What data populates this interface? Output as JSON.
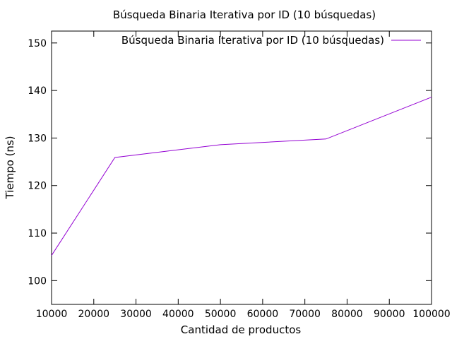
{
  "chart_data": {
    "type": "line",
    "title": "Búsqueda Binaria Iterativa por ID (10 búsquedas)",
    "xlabel": "Cantidad de productos",
    "ylabel": "Tiempo (ns)",
    "xlim": [
      10000,
      100000
    ],
    "ylim": [
      95,
      152.5
    ],
    "x_ticks": [
      "10000",
      "20000",
      "30000",
      "40000",
      "50000",
      "60000",
      "70000",
      "80000",
      "90000",
      "100000"
    ],
    "y_ticks": [
      "100",
      "110",
      "120",
      "130",
      "140",
      "150"
    ],
    "grid": false,
    "legend_position": "top-right",
    "series": [
      {
        "name": "Búsqueda Binaria Iterativa por ID (10 búsquedas)",
        "color": "#9400d3",
        "x": [
          10000,
          25000,
          50000,
          75000,
          100000
        ],
        "y": [
          105.3,
          125.9,
          128.6,
          129.8,
          138.6
        ]
      }
    ]
  }
}
